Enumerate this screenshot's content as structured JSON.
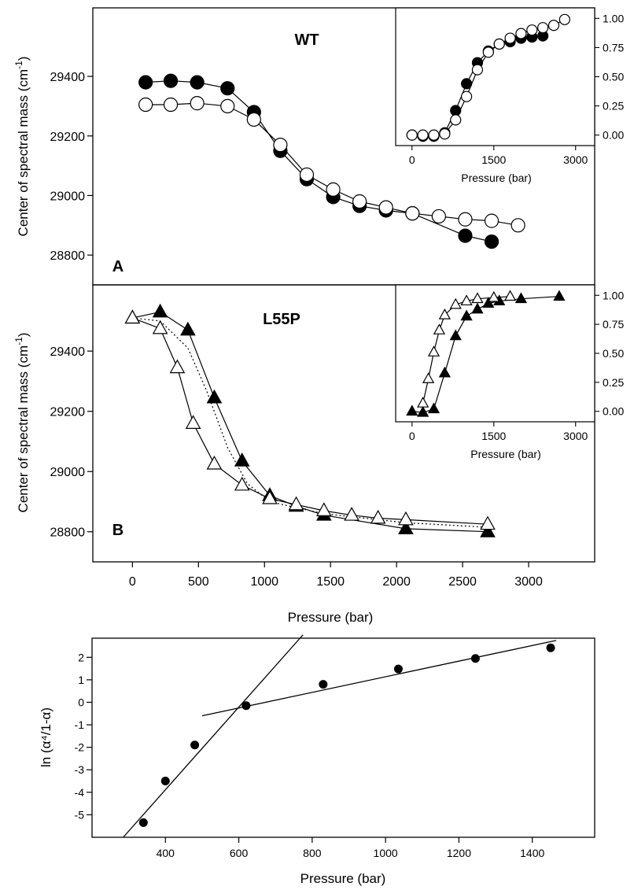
{
  "chart_data": [
    {
      "type": "line",
      "panel_label": "A",
      "title": "WT",
      "ylabel": "Center of spectral mass (cm⁻¹)",
      "xlabel": "",
      "xlim": [
        -300,
        3500
      ],
      "ylim": [
        28700,
        29630
      ],
      "xticks": [],
      "yticks": [
        "28800",
        "29000",
        "29200",
        "29400"
      ],
      "series": [
        {
          "marker": "circle-filled",
          "x": [
            100,
            290,
            490,
            720,
            920,
            1120,
            1320,
            1520,
            1720,
            1920,
            2120,
            2520,
            2720
          ],
          "y": [
            29380,
            29385,
            29380,
            29360,
            29280,
            29150,
            29055,
            28995,
            28965,
            28950,
            28940,
            28865,
            28845
          ]
        },
        {
          "marker": "circle-open",
          "x": [
            100,
            290,
            490,
            720,
            920,
            1120,
            1320,
            1520,
            1720,
            1920,
            2120,
            2320,
            2520,
            2720,
            2920
          ],
          "y": [
            29305,
            29305,
            29310,
            29300,
            29255,
            29170,
            29070,
            29020,
            28980,
            28960,
            28940,
            28930,
            28920,
            28915,
            28900
          ]
        }
      ],
      "inset": {
        "xlabel": "Pressure (bar)",
        "xlim": [
          -300,
          3350
        ],
        "ylim": [
          -0.09,
          1.09
        ],
        "xticks": [
          "0",
          "1500",
          "3000"
        ],
        "yticks": [
          "0.00",
          "0.25",
          "0.50",
          "0.75",
          "1.00"
        ],
        "series": [
          {
            "marker": "circle-filled",
            "x": [
              0,
              200,
              400,
              600,
              800,
              1000,
              1200,
              1400,
              1600,
              1800,
              2000,
              2200,
              2400
            ],
            "y": [
              0.0,
              -0.01,
              -0.01,
              0.02,
              0.21,
              0.44,
              0.62,
              0.72,
              0.78,
              0.8,
              0.83,
              0.84,
              0.85
            ]
          },
          {
            "marker": "circle-open",
            "x": [
              0,
              200,
              400,
              600,
              800,
              1000,
              1200,
              1400,
              1600,
              1800,
              2000,
              2200,
              2400,
              2600,
              2800
            ],
            "y": [
              0.0,
              0.0,
              0.0,
              0.01,
              0.13,
              0.33,
              0.56,
              0.71,
              0.78,
              0.83,
              0.87,
              0.9,
              0.92,
              0.94,
              0.99
            ]
          }
        ]
      }
    },
    {
      "type": "line",
      "panel_label": "B",
      "title": "L55P",
      "ylabel": "Center of spectral mass (cm⁻¹)",
      "xlabel": "Pressure (bar)",
      "xlim": [
        -300,
        3500
      ],
      "ylim": [
        28700,
        29620
      ],
      "xticks": [
        "0",
        "500",
        "1000",
        "1500",
        "2000",
        "2500",
        "3000"
      ],
      "yticks": [
        "28800",
        "29000",
        "29200",
        "29400"
      ],
      "series": [
        {
          "marker": "triangle-filled",
          "x": [
            0,
            210,
            420,
            620,
            830,
            1040,
            1240,
            1450,
            2070,
            2690
          ],
          "y": [
            29510,
            29530,
            29470,
            29245,
            29035,
            28920,
            28885,
            28855,
            28810,
            28800
          ]
        },
        {
          "marker": "triangle-open",
          "x": [
            0,
            210,
            340,
            460,
            620,
            830,
            1040,
            1240,
            1450,
            1660,
            1860,
            2070,
            2690
          ],
          "y": [
            29510,
            29475,
            29345,
            29160,
            29025,
            28955,
            28910,
            28890,
            28870,
            28855,
            28845,
            28840,
            28825
          ]
        },
        {
          "marker": "none",
          "style": "dotted",
          "x": [
            0,
            210,
            420,
            560,
            720,
            870,
            1040,
            1240,
            1450,
            2070,
            2690
          ],
          "y": [
            29510,
            29500,
            29410,
            29270,
            29080,
            28960,
            28900,
            28880,
            28860,
            28830,
            28815
          ]
        }
      ],
      "inset": {
        "xlabel": "Pressure (bar)",
        "xlim": [
          -300,
          3350
        ],
        "ylim": [
          -0.09,
          1.09
        ],
        "xticks": [
          "0",
          "1500",
          "3000"
        ],
        "yticks": [
          "0.00",
          "0.25",
          "0.50",
          "0.75",
          "1.00"
        ],
        "series": [
          {
            "marker": "triangle-filled",
            "x": [
              0,
              200,
              400,
              600,
              800,
              1000,
              1200,
              1400,
              1600,
              2000,
              2700
            ],
            "y": [
              0.0,
              -0.01,
              0.02,
              0.33,
              0.65,
              0.82,
              0.88,
              0.93,
              0.95,
              0.97,
              0.99
            ]
          },
          {
            "marker": "triangle-open",
            "x": [
              200,
              300,
              400,
              500,
              600,
              800,
              1000,
              1200,
              1500,
              1800
            ],
            "y": [
              0.07,
              0.28,
              0.51,
              0.7,
              0.83,
              0.92,
              0.95,
              0.97,
              0.98,
              0.99
            ]
          }
        ]
      }
    },
    {
      "type": "scatter",
      "panel_label": "",
      "title": "",
      "xlabel": "Pressure (bar)",
      "ylabel": "ln (α⁴/1-α)",
      "xlim": [
        200,
        1570
      ],
      "ylim": [
        -6.0,
        2.85
      ],
      "xticks": [
        "400",
        "600",
        "800",
        "1000",
        "1200",
        "1400"
      ],
      "yticks": [
        "-5",
        "-4",
        "-3",
        "-2",
        "-1",
        "0",
        "1",
        "2"
      ],
      "points": {
        "x": [
          340,
          400,
          480,
          620,
          830,
          1035,
          1245,
          1450
        ],
        "y": [
          -5.35,
          -3.5,
          -1.9,
          -0.15,
          0.8,
          1.48,
          1.95,
          2.42
        ]
      },
      "fit_lines": [
        {
          "x": [
            285,
            775
          ],
          "y": [
            -6.0,
            3.0
          ]
        },
        {
          "x": [
            500,
            1465
          ],
          "y": [
            -0.6,
            2.75
          ]
        }
      ]
    }
  ]
}
